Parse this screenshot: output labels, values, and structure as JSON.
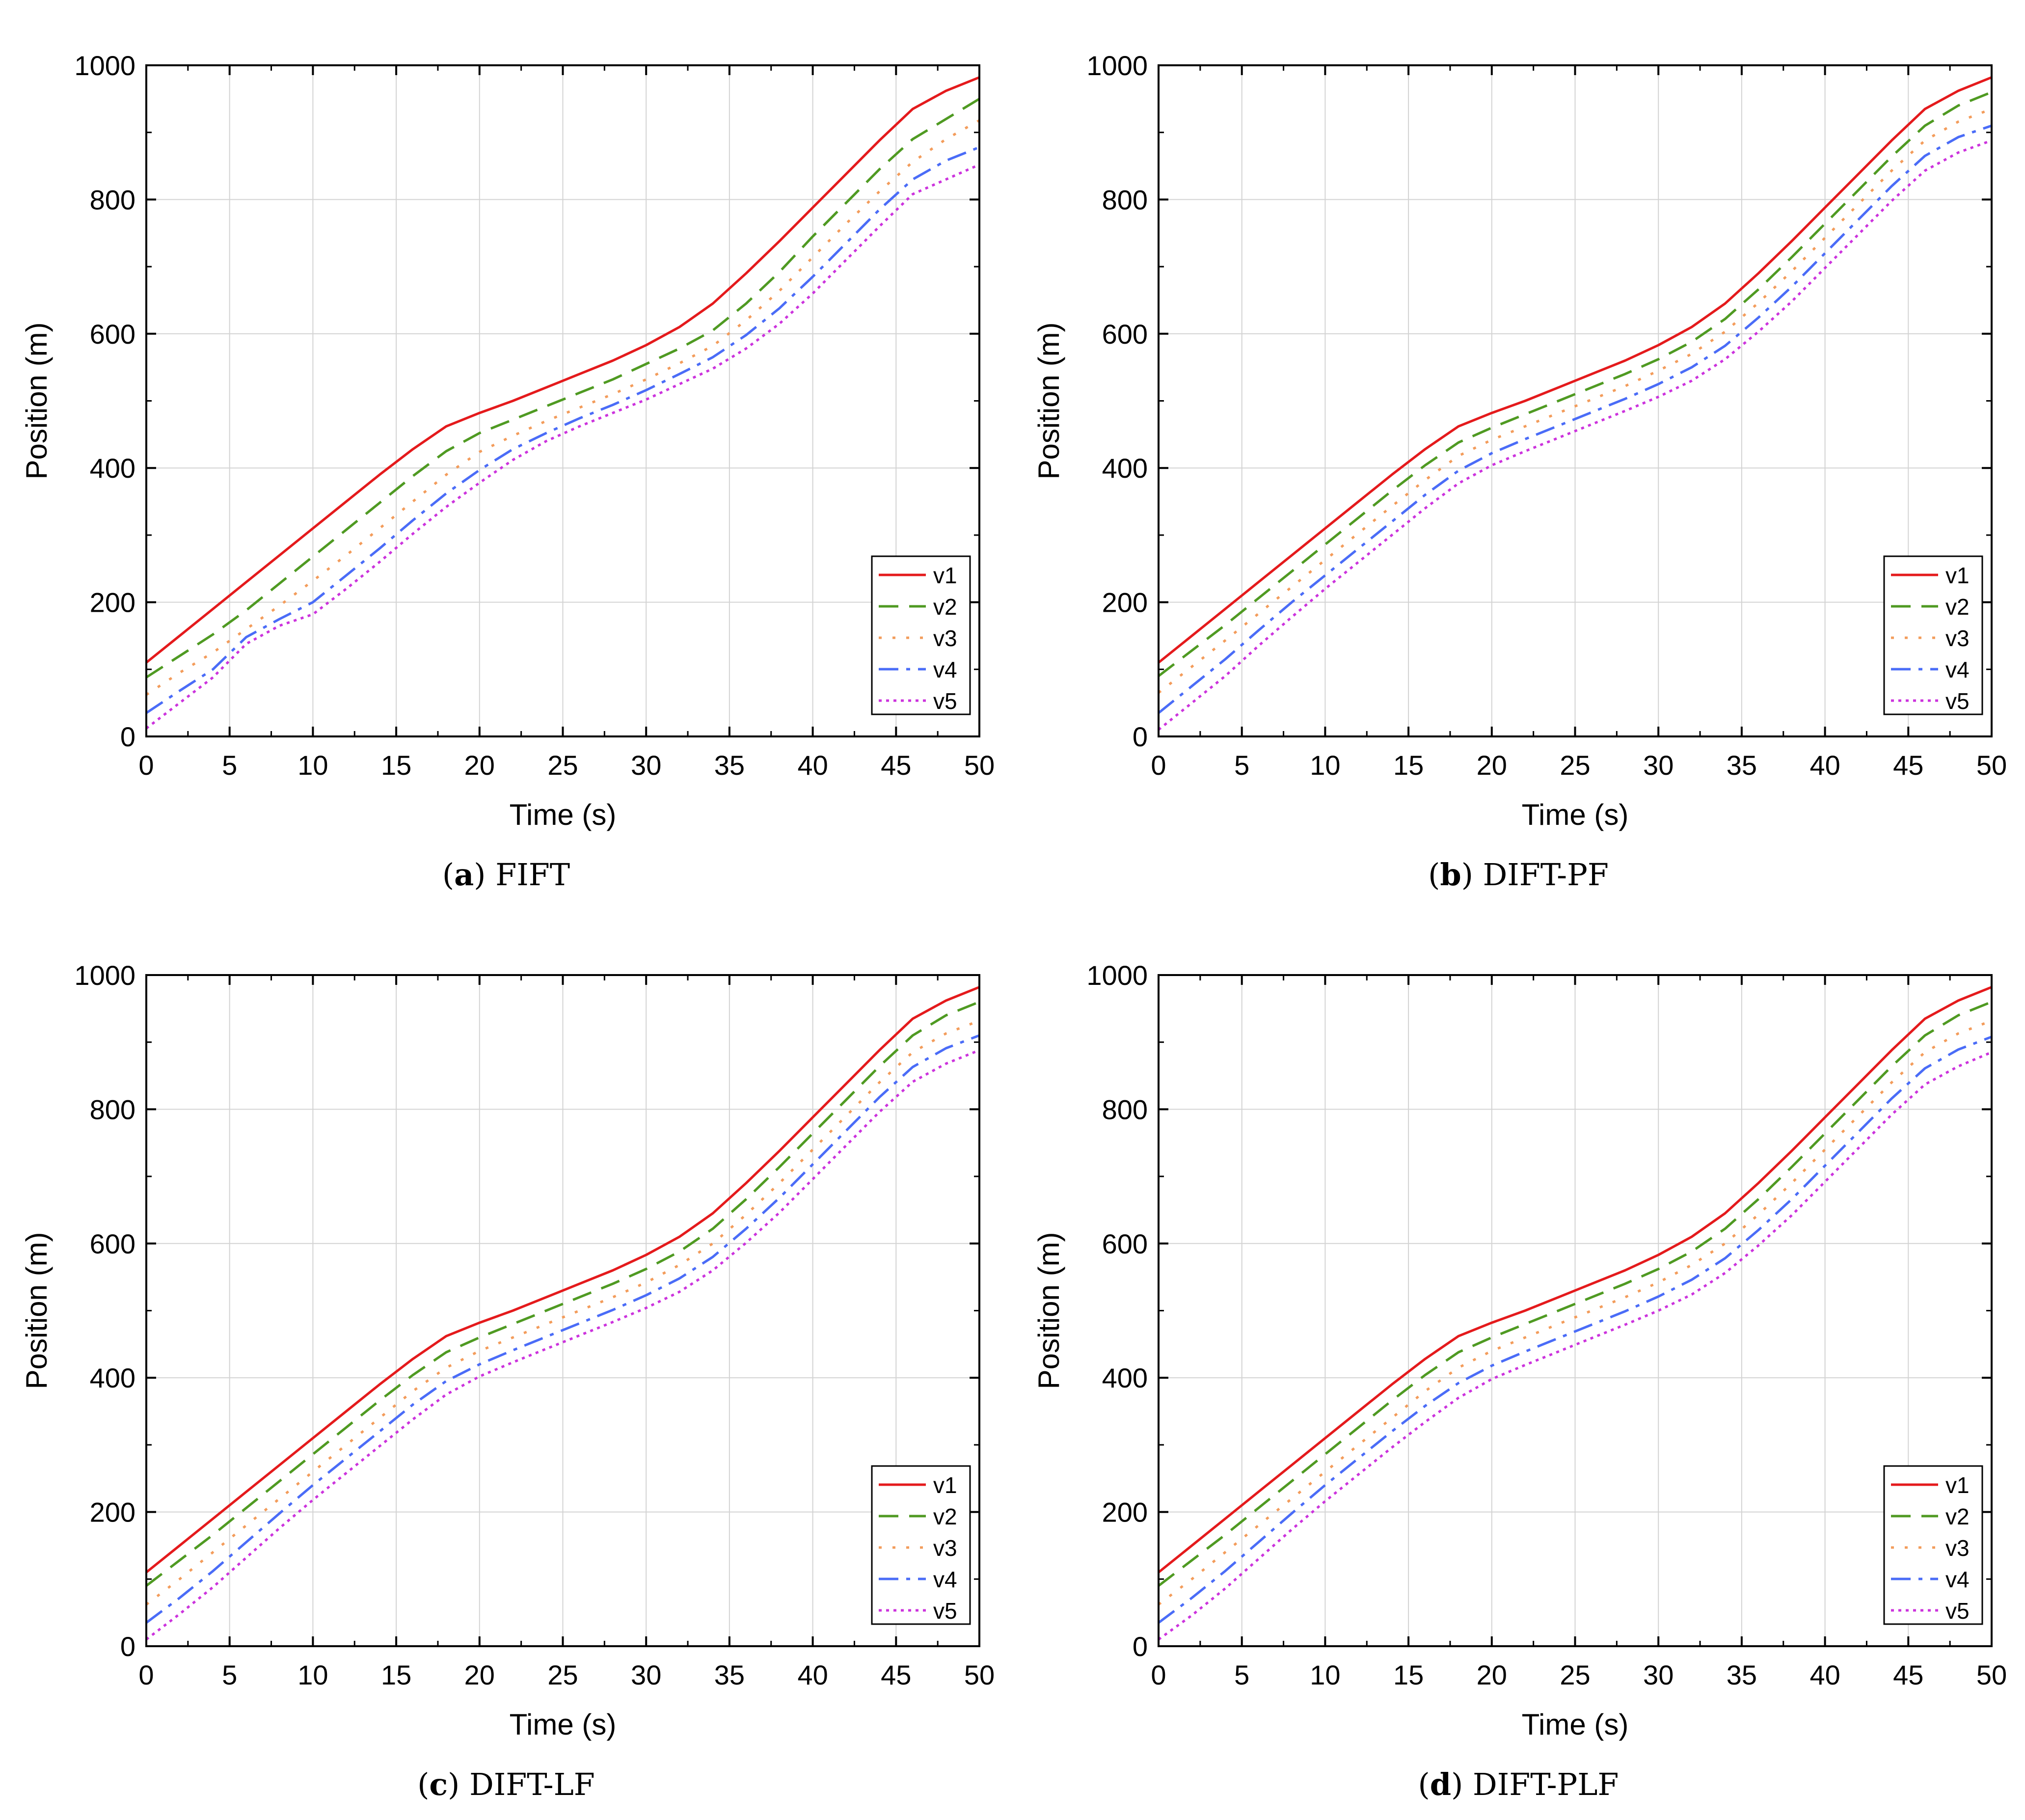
{
  "figure": {
    "panels": [
      {
        "id": "a",
        "letter": "a",
        "title": "FIFT"
      },
      {
        "id": "b",
        "letter": "b",
        "title": "DIFT-PF"
      },
      {
        "id": "c",
        "letter": "c",
        "title": "DIFT-LF"
      },
      {
        "id": "d",
        "letter": "d",
        "title": "DIFT-PLF"
      }
    ]
  },
  "chart_data": [
    {
      "type": "line",
      "panel": "a",
      "title": "FIFT",
      "xlabel": "Time (s)",
      "ylabel": "Position (m)",
      "xlim": [
        0,
        50
      ],
      "ylim": [
        0,
        1000
      ],
      "xticks": [
        0,
        5,
        10,
        15,
        20,
        25,
        30,
        35,
        40,
        45,
        50
      ],
      "yticks": [
        0,
        200,
        400,
        600,
        800,
        1000
      ],
      "grid": true,
      "legend": "bottom-right",
      "x": [
        0,
        2,
        4,
        6,
        8,
        10,
        12,
        14,
        16,
        18,
        20,
        22,
        24,
        26,
        28,
        30,
        32,
        34,
        36,
        38,
        40,
        42,
        44,
        46,
        48,
        50
      ],
      "series": [
        {
          "name": "v1",
          "color": "#e41a1c",
          "dash": "solid",
          "values": [
            110,
            150,
            190,
            230,
            270,
            310,
            350,
            390,
            428,
            462,
            482,
            500,
            520,
            540,
            560,
            583,
            610,
            645,
            690,
            738,
            788,
            838,
            888,
            935,
            962,
            982
          ]
        },
        {
          "name": "v2",
          "color": "#4f9a22",
          "dash": "dashed",
          "values": [
            88,
            120,
            152,
            188,
            228,
            268,
            308,
            348,
            388,
            425,
            452,
            472,
            492,
            512,
            532,
            555,
            578,
            605,
            645,
            692,
            745,
            795,
            845,
            890,
            920,
            950
          ]
        },
        {
          "name": "v3",
          "color": "#f39c5b",
          "dash": "dotted",
          "values": [
            62,
            95,
            125,
            160,
            195,
            232,
            270,
            310,
            350,
            390,
            424,
            448,
            470,
            490,
            510,
            532,
            556,
            582,
            620,
            664,
            714,
            764,
            812,
            856,
            890,
            918
          ]
        },
        {
          "name": "v4",
          "color": "#4a6cf7",
          "dash": "dashdot",
          "values": [
            35,
            68,
            100,
            148,
            175,
            200,
            240,
            280,
            322,
            362,
            397,
            428,
            452,
            474,
            494,
            516,
            540,
            565,
            598,
            638,
            685,
            735,
            785,
            830,
            858,
            878
          ]
        },
        {
          "name": "v5",
          "color": "#cc33dd",
          "dash": "densedot",
          "values": [
            12,
            50,
            88,
            138,
            165,
            182,
            220,
            260,
            302,
            342,
            378,
            412,
            440,
            462,
            482,
            502,
            525,
            548,
            578,
            615,
            660,
            710,
            760,
            808,
            830,
            852
          ]
        }
      ]
    },
    {
      "type": "line",
      "panel": "b",
      "title": "DIFT-PF",
      "xlabel": "Time (s)",
      "ylabel": "Position (m)",
      "xlim": [
        0,
        50
      ],
      "ylim": [
        0,
        1000
      ],
      "xticks": [
        0,
        5,
        10,
        15,
        20,
        25,
        30,
        35,
        40,
        45,
        50
      ],
      "yticks": [
        0,
        200,
        400,
        600,
        800,
        1000
      ],
      "grid": true,
      "legend": "bottom-right",
      "x": [
        0,
        2,
        4,
        6,
        8,
        10,
        12,
        14,
        16,
        18,
        20,
        22,
        24,
        26,
        28,
        30,
        32,
        34,
        36,
        38,
        40,
        42,
        44,
        46,
        48,
        50
      ],
      "series": [
        {
          "name": "v1",
          "color": "#e41a1c",
          "dash": "solid",
          "values": [
            110,
            150,
            190,
            230,
            270,
            310,
            350,
            390,
            428,
            462,
            482,
            500,
            520,
            540,
            560,
            583,
            610,
            645,
            690,
            738,
            788,
            838,
            888,
            935,
            962,
            982
          ]
        },
        {
          "name": "v2",
          "color": "#4f9a22",
          "dash": "dashed",
          "values": [
            90,
            128,
            166,
            206,
            246,
            286,
            326,
            366,
            404,
            438,
            460,
            480,
            500,
            520,
            540,
            562,
            588,
            622,
            666,
            714,
            764,
            814,
            864,
            910,
            940,
            960
          ]
        },
        {
          "name": "v3",
          "color": "#f39c5b",
          "dash": "dotted",
          "values": [
            65,
            104,
            143,
            183,
            223,
            263,
            303,
            343,
            382,
            418,
            442,
            462,
            482,
            502,
            522,
            545,
            570,
            603,
            646,
            693,
            743,
            793,
            843,
            888,
            916,
            935
          ]
        },
        {
          "name": "v4",
          "color": "#4a6cf7",
          "dash": "dashdot",
          "values": [
            35,
            75,
            115,
            158,
            200,
            240,
            280,
            320,
            360,
            396,
            422,
            443,
            463,
            483,
            503,
            525,
            550,
            582,
            624,
            670,
            720,
            770,
            820,
            865,
            893,
            910
          ]
        },
        {
          "name": "v5",
          "color": "#cc33dd",
          "dash": "densedot",
          "values": [
            10,
            50,
            90,
            135,
            178,
            220,
            260,
            300,
            340,
            377,
            404,
            425,
            445,
            465,
            485,
            506,
            530,
            562,
            603,
            648,
            698,
            748,
            798,
            843,
            870,
            888
          ]
        }
      ]
    },
    {
      "type": "line",
      "panel": "c",
      "title": "DIFT-LF",
      "xlabel": "Time (s)",
      "ylabel": "Position (m)",
      "xlim": [
        0,
        50
      ],
      "ylim": [
        0,
        1000
      ],
      "xticks": [
        0,
        5,
        10,
        15,
        20,
        25,
        30,
        35,
        40,
        45,
        50
      ],
      "yticks": [
        0,
        200,
        400,
        600,
        800,
        1000
      ],
      "grid": true,
      "legend": "bottom-right",
      "x": [
        0,
        2,
        4,
        6,
        8,
        10,
        12,
        14,
        16,
        18,
        20,
        22,
        24,
        26,
        28,
        30,
        32,
        34,
        36,
        38,
        40,
        42,
        44,
        46,
        48,
        50
      ],
      "series": [
        {
          "name": "v1",
          "color": "#e41a1c",
          "dash": "solid",
          "values": [
            110,
            150,
            190,
            230,
            270,
            310,
            350,
            390,
            428,
            462,
            482,
            500,
            520,
            540,
            560,
            583,
            610,
            645,
            690,
            738,
            788,
            838,
            888,
            935,
            962,
            982
          ]
        },
        {
          "name": "v2",
          "color": "#4f9a22",
          "dash": "dashed",
          "values": [
            90,
            128,
            166,
            206,
            246,
            286,
            326,
            366,
            404,
            438,
            460,
            480,
            500,
            520,
            540,
            562,
            588,
            622,
            666,
            714,
            764,
            814,
            864,
            910,
            940,
            960
          ]
        },
        {
          "name": "v3",
          "color": "#f39c5b",
          "dash": "dotted",
          "values": [
            62,
            100,
            140,
            180,
            220,
            260,
            300,
            340,
            380,
            415,
            440,
            460,
            480,
            500,
            520,
            542,
            568,
            600,
            643,
            690,
            740,
            790,
            840,
            885,
            913,
            932
          ]
        },
        {
          "name": "v4",
          "color": "#4a6cf7",
          "dash": "dashdot",
          "values": [
            35,
            72,
            112,
            155,
            198,
            240,
            280,
            320,
            360,
            395,
            420,
            441,
            461,
            481,
            501,
            523,
            548,
            580,
            622,
            668,
            718,
            768,
            818,
            863,
            891,
            910
          ]
        },
        {
          "name": "v5",
          "color": "#cc33dd",
          "dash": "densedot",
          "values": [
            10,
            48,
            88,
            132,
            176,
            218,
            258,
            298,
            338,
            375,
            402,
            423,
            443,
            463,
            483,
            504,
            528,
            560,
            601,
            646,
            696,
            746,
            796,
            841,
            868,
            888
          ]
        }
      ]
    },
    {
      "type": "line",
      "panel": "d",
      "title": "DIFT-PLF",
      "xlabel": "Time (s)",
      "ylabel": "Position (m)",
      "xlim": [
        0,
        50
      ],
      "ylim": [
        0,
        1000
      ],
      "xticks": [
        0,
        5,
        10,
        15,
        20,
        25,
        30,
        35,
        40,
        45,
        50
      ],
      "yticks": [
        0,
        200,
        400,
        600,
        800,
        1000
      ],
      "grid": true,
      "legend": "bottom-right",
      "x": [
        0,
        2,
        4,
        6,
        8,
        10,
        12,
        14,
        16,
        18,
        20,
        22,
        24,
        26,
        28,
        30,
        32,
        34,
        36,
        38,
        40,
        42,
        44,
        46,
        48,
        50
      ],
      "series": [
        {
          "name": "v1",
          "color": "#e41a1c",
          "dash": "solid",
          "values": [
            110,
            150,
            190,
            230,
            270,
            310,
            350,
            390,
            428,
            462,
            482,
            500,
            520,
            540,
            560,
            583,
            610,
            645,
            690,
            738,
            788,
            838,
            888,
            935,
            962,
            982
          ]
        },
        {
          "name": "v2",
          "color": "#4f9a22",
          "dash": "dashed",
          "values": [
            90,
            128,
            166,
            206,
            246,
            286,
            326,
            366,
            404,
            438,
            460,
            480,
            500,
            520,
            540,
            562,
            588,
            622,
            666,
            714,
            764,
            814,
            864,
            910,
            940,
            960
          ]
        },
        {
          "name": "v3",
          "color": "#f39c5b",
          "dash": "dotted",
          "values": [
            62,
            100,
            140,
            180,
            220,
            260,
            300,
            340,
            380,
            415,
            440,
            460,
            480,
            500,
            520,
            542,
            568,
            600,
            643,
            690,
            740,
            790,
            840,
            885,
            913,
            932
          ]
        },
        {
          "name": "v4",
          "color": "#4a6cf7",
          "dash": "dashdot",
          "values": [
            35,
            72,
            112,
            155,
            198,
            240,
            280,
            320,
            358,
            392,
            418,
            439,
            459,
            479,
            499,
            521,
            546,
            578,
            620,
            666,
            716,
            766,
            816,
            861,
            889,
            908
          ]
        },
        {
          "name": "v5",
          "color": "#cc33dd",
          "dash": "densedot",
          "values": [
            10,
            46,
            86,
            130,
            174,
            216,
            256,
            296,
            334,
            370,
            398,
            419,
            439,
            459,
            479,
            500,
            524,
            556,
            597,
            642,
            692,
            742,
            792,
            837,
            864,
            885
          ]
        }
      ]
    }
  ]
}
